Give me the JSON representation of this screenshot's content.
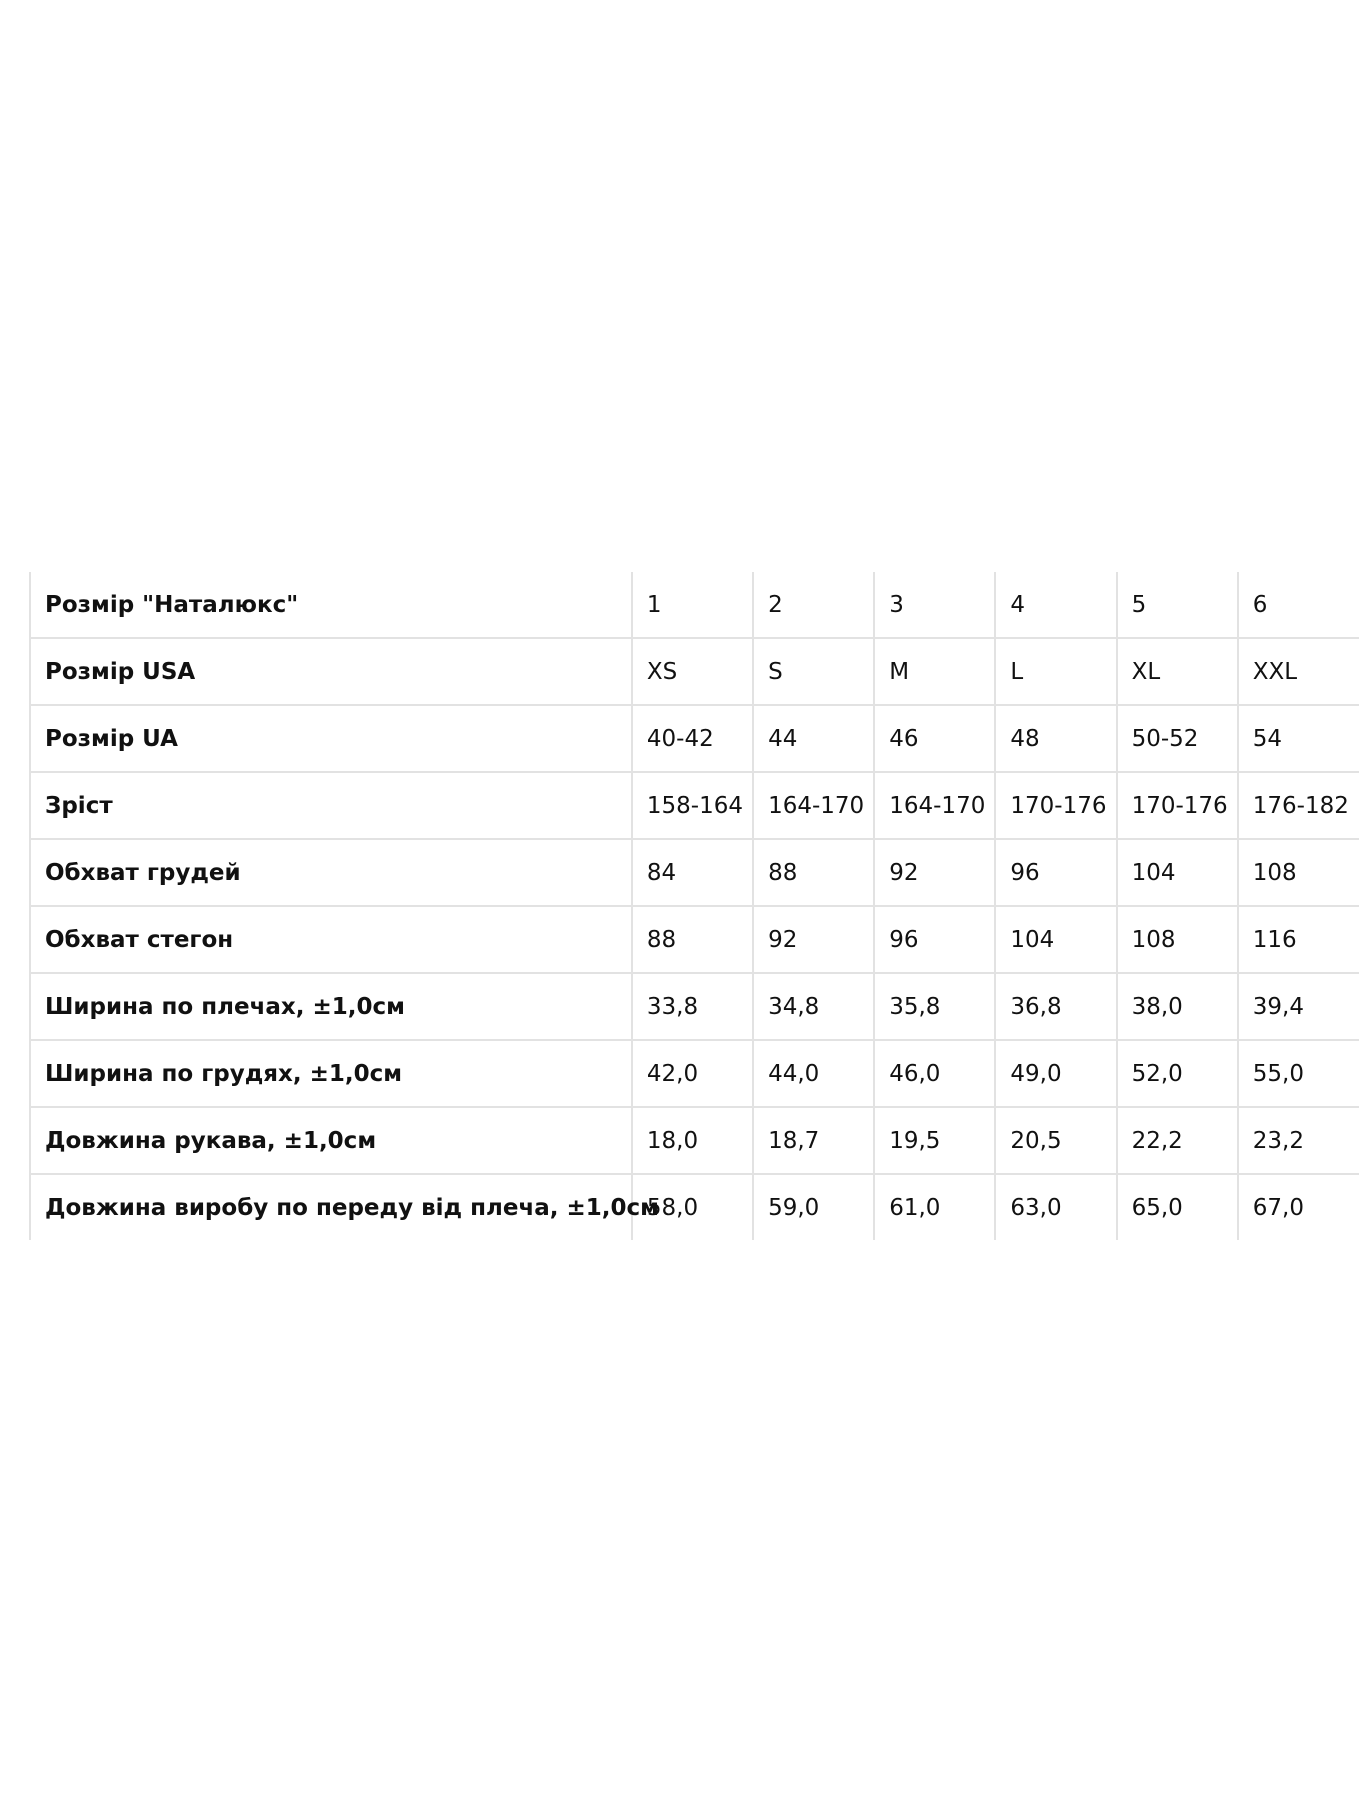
{
  "size_table": {
    "rows": [
      {
        "label": "Розмір  \"Наталюкс\"",
        "values": [
          "1",
          "2",
          "3",
          "4",
          "5",
          "6"
        ]
      },
      {
        "label": "Розмір  USA",
        "values": [
          "XS",
          "S",
          "M",
          "L",
          "XL",
          "XXL"
        ]
      },
      {
        "label": "Розмір UA",
        "values": [
          "40-42",
          "44",
          "46",
          "48",
          "50-52",
          "54"
        ]
      },
      {
        "label": "Зріст",
        "values": [
          "158-164",
          "164-170",
          "164-170",
          "170-176",
          "170-176",
          "176-182"
        ]
      },
      {
        "label": "Обхват грудей",
        "values": [
          "84",
          "88",
          "92",
          "96",
          "104",
          "108"
        ]
      },
      {
        "label": "Обхват стегон",
        "values": [
          "88",
          "92",
          "96",
          "104",
          "108",
          "116"
        ]
      },
      {
        "label": "Ширина по плечах, ±1,0см",
        "values": [
          "33,8",
          "34,8",
          "35,8",
          "36,8",
          "38,0",
          "39,4"
        ]
      },
      {
        "label": "Ширина по грудях, ±1,0см",
        "values": [
          "42,0",
          "44,0",
          "46,0",
          "49,0",
          "52,0",
          "55,0"
        ]
      },
      {
        "label": "Довжина рукава, ±1,0см",
        "values": [
          "18,0",
          "18,7",
          "19,5",
          "20,5",
          "22,2",
          "23,2"
        ]
      },
      {
        "label": "Довжина виробу по переду від плеча, ±1,0см",
        "values": [
          "58,0",
          "59,0",
          "61,0",
          "63,0",
          "65,0",
          "67,0"
        ]
      }
    ]
  }
}
